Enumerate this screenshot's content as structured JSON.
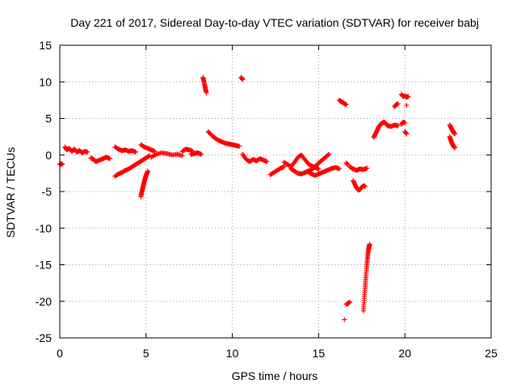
{
  "chart_data": {
    "type": "scatter",
    "title": "Day 221 of 2017, Sidereal Day-to-day VTEC variation (SDTVAR) for receiver babj",
    "xlabel": "GPS time / hours",
    "ylabel": "SDTVAR / TECUs",
    "xlim": [
      0,
      25
    ],
    "ylim": [
      -25,
      15
    ],
    "xticks": [
      0,
      5,
      10,
      15,
      20,
      25
    ],
    "yticks": [
      -25,
      -20,
      -15,
      -10,
      -5,
      0,
      5,
      10,
      15
    ],
    "grid": true,
    "marker": "plus",
    "color": "#ff0000",
    "segments": [
      {
        "x": [
          0.0,
          0.05,
          0.1,
          0.15
        ],
        "y": [
          -1.3,
          -1.2,
          -1.2,
          -1.3
        ]
      },
      {
        "x": [
          0.3,
          0.4,
          0.55,
          0.7,
          0.85,
          1.0,
          1.15,
          1.3,
          1.45,
          1.6
        ],
        "y": [
          1.1,
          0.7,
          0.9,
          0.5,
          0.8,
          0.4,
          0.6,
          0.3,
          0.5,
          0.4
        ]
      },
      {
        "x": [
          1.8,
          1.95,
          2.1,
          2.3,
          2.5,
          2.7,
          2.9
        ],
        "y": [
          -0.4,
          -0.6,
          -0.9,
          -0.7,
          -0.5,
          -0.3,
          -0.5
        ]
      },
      {
        "x": [
          3.2,
          3.4,
          3.6,
          3.8,
          4.0,
          4.2,
          4.4
        ],
        "y": [
          1.1,
          0.8,
          0.6,
          0.7,
          0.5,
          0.6,
          0.4
        ]
      },
      {
        "x": [
          3.2,
          3.4,
          3.6,
          3.8,
          4.0,
          4.2,
          4.4,
          4.6,
          4.8,
          5.0,
          5.2
        ],
        "y": [
          -2.9,
          -2.6,
          -2.4,
          -2.1,
          -1.9,
          -1.6,
          -1.3,
          -1.0,
          -0.7,
          -0.4,
          -0.1
        ]
      },
      {
        "x": [
          4.7,
          4.75,
          4.8,
          4.85,
          4.9,
          4.95,
          5.0,
          5.05,
          5.1
        ],
        "y": [
          -5.7,
          -5.1,
          -4.6,
          -4.1,
          -3.6,
          -3.2,
          -2.8,
          -2.5,
          -2.2
        ]
      },
      {
        "x": [
          4.7,
          4.9,
          5.1,
          5.3,
          5.5
        ],
        "y": [
          1.4,
          1.1,
          0.9,
          0.7,
          0.5
        ]
      },
      {
        "x": [
          5.3,
          5.6,
          5.9,
          6.2,
          6.5,
          6.8,
          7.1
        ],
        "y": [
          -0.3,
          0.1,
          0.3,
          0.2,
          0.0,
          0.1,
          -0.1
        ]
      },
      {
        "x": [
          7.1,
          7.3,
          7.5,
          7.7
        ],
        "y": [
          0.5,
          0.8,
          0.7,
          0.5
        ]
      },
      {
        "x": [
          7.6,
          7.8,
          8.0,
          8.2
        ],
        "y": [
          0.1,
          0.2,
          0.3,
          0.1
        ]
      },
      {
        "x": [
          8.3,
          8.35,
          8.4,
          8.45,
          8.5
        ],
        "y": [
          10.6,
          10.1,
          9.5,
          9.0,
          8.5
        ]
      },
      {
        "x": [
          8.6,
          8.8,
          9.0,
          9.2,
          9.4,
          9.6,
          9.8,
          10.0,
          10.2,
          10.4
        ],
        "y": [
          3.2,
          2.7,
          2.3,
          2.0,
          1.8,
          1.6,
          1.5,
          1.4,
          1.3,
          1.2
        ]
      },
      {
        "x": [
          10.5,
          10.55,
          10.6
        ],
        "y": [
          10.6,
          10.5,
          10.3
        ]
      },
      {
        "x": [
          10.6,
          10.8,
          11.0,
          11.2,
          11.4,
          11.6,
          11.8,
          12.0
        ],
        "y": [
          0.1,
          -0.6,
          -0.9,
          -0.6,
          -0.8,
          -0.5,
          -0.7,
          -0.9
        ]
      },
      {
        "x": [
          12.2,
          12.4,
          12.6,
          12.8,
          13.0
        ],
        "y": [
          -2.7,
          -2.4,
          -2.1,
          -1.8,
          -1.6
        ]
      },
      {
        "x": [
          13.0,
          13.2,
          13.4,
          13.6,
          13.8,
          14.0,
          14.2,
          14.4,
          14.6,
          14.8,
          15.0
        ],
        "y": [
          -1.0,
          -1.3,
          -1.6,
          -1.0,
          -0.3,
          0.0,
          -0.6,
          -1.2,
          -1.5,
          -1.7,
          -1.9
        ]
      },
      {
        "x": [
          13.4,
          13.6,
          13.8,
          14.0,
          14.2,
          14.4,
          14.6,
          14.8,
          15.0,
          15.2,
          15.4,
          15.6
        ],
        "y": [
          -1.9,
          -2.2,
          -2.5,
          -2.6,
          -2.4,
          -2.2,
          -2.0,
          -1.6,
          -1.1,
          -0.7,
          -0.3,
          0.1
        ]
      },
      {
        "x": [
          14.4,
          14.6,
          14.8,
          15.0,
          15.2,
          15.4,
          15.6,
          15.8,
          16.0,
          16.2
        ],
        "y": [
          -2.3,
          -2.6,
          -2.8,
          -2.6,
          -2.4,
          -2.2,
          -2.0,
          -1.8,
          -1.7,
          -1.9
        ]
      },
      {
        "x": [
          16.2,
          16.3,
          16.4,
          16.5,
          16.6
        ],
        "y": [
          7.5,
          7.3,
          7.2,
          7.0,
          6.9
        ]
      },
      {
        "x": [
          16.6,
          16.7
        ],
        "y": [
          -1.1,
          -1.3
        ]
      },
      {
        "x": [
          16.8,
          17.0,
          17.2,
          17.4,
          17.6,
          17.8
        ],
        "y": [
          -1.6,
          -1.9,
          -2.1,
          -1.9,
          -2.0,
          -1.8
        ]
      },
      {
        "x": [
          16.5
        ],
        "y": [
          -22.5
        ]
      },
      {
        "x": [
          16.6,
          16.7,
          16.8
        ],
        "y": [
          -20.4,
          -20.3,
          -20.1
        ]
      },
      {
        "x": [
          17.0,
          17.1,
          17.2,
          17.3,
          17.4,
          17.5,
          17.6,
          17.7
        ],
        "y": [
          -3.5,
          -4.0,
          -4.5,
          -4.8,
          -4.7,
          -4.4,
          -4.2,
          -4.3
        ]
      },
      {
        "x": [
          17.6,
          17.63,
          17.66,
          17.7,
          17.73,
          17.76,
          17.8,
          17.83,
          17.86,
          17.9,
          17.93,
          17.96
        ],
        "y": [
          -21.3,
          -20.2,
          -19.1,
          -18.0,
          -17.0,
          -16.0,
          -15.0,
          -14.2,
          -13.5,
          -12.9,
          -12.5,
          -12.2
        ]
      },
      {
        "x": [
          18.2,
          18.3,
          18.4,
          18.5,
          18.6,
          18.7,
          18.8,
          18.9,
          19.0,
          19.2,
          19.4,
          19.6
        ],
        "y": [
          2.4,
          2.9,
          3.4,
          3.9,
          4.2,
          4.4,
          4.5,
          4.3,
          4.0,
          3.9,
          4.1,
          4.0
        ]
      },
      {
        "x": [
          19.4,
          19.5,
          19.6
        ],
        "y": [
          6.6,
          6.9,
          7.0
        ]
      },
      {
        "x": [
          19.8,
          19.9,
          20.0
        ],
        "y": [
          4.2,
          4.5,
          4.4
        ]
      },
      {
        "x": [
          19.8,
          19.9,
          20.0,
          20.1,
          20.2
        ],
        "y": [
          8.3,
          8.0,
          8.1,
          7.9,
          8.0
        ]
      },
      {
        "x": [
          20.1
        ],
        "y": [
          6.8
        ]
      },
      {
        "x": [
          20.0,
          20.1
        ],
        "y": [
          3.2,
          2.9
        ]
      },
      {
        "x": [
          22.6,
          22.65,
          22.7,
          22.75,
          22.8,
          22.85,
          22.9
        ],
        "y": [
          4.1,
          3.9,
          3.6,
          3.4,
          3.2,
          3.0,
          2.9
        ]
      },
      {
        "x": [
          22.6,
          22.65,
          22.7,
          22.75,
          22.8,
          22.85,
          22.9
        ],
        "y": [
          2.5,
          2.1,
          1.8,
          1.5,
          1.3,
          1.1,
          1.0
        ]
      }
    ]
  }
}
